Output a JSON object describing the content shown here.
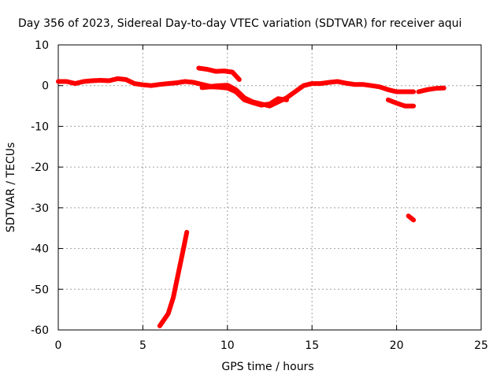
{
  "chart_data": {
    "type": "line",
    "title": "Day 356 of 2023, Sidereal Day-to-day VTEC variation (SDTVAR) for receiver aqui",
    "xlabel": "GPS time / hours",
    "ylabel": "SDTVAR / TECUs",
    "xlim": [
      0,
      25
    ],
    "ylim": [
      -60,
      10
    ],
    "xticks": [
      0,
      5,
      10,
      15,
      20,
      25
    ],
    "yticks": [
      10,
      0,
      -10,
      -20,
      -30,
      -40,
      -50,
      -60
    ],
    "grid": true,
    "series": [
      {
        "name": "main-track-a",
        "points": [
          [
            0,
            1
          ],
          [
            0.5,
            1
          ],
          [
            1,
            0.5
          ],
          [
            1.5,
            1
          ],
          [
            2,
            1.2
          ],
          [
            2.5,
            1.3
          ],
          [
            3,
            1.2
          ],
          [
            3.5,
            1.7
          ],
          [
            4,
            1.5
          ],
          [
            4.5,
            0.5
          ],
          [
            5,
            0.2
          ],
          [
            5.5,
            0
          ],
          [
            6,
            0.3
          ],
          [
            6.5,
            0.5
          ],
          [
            7,
            0.7
          ],
          [
            7.5,
            1
          ],
          [
            8,
            0.8
          ],
          [
            8.5,
            0.3
          ],
          [
            9,
            -0.2
          ],
          [
            9.5,
            0
          ],
          [
            10,
            0.1
          ],
          [
            10.5,
            -1
          ],
          [
            11,
            -3
          ],
          [
            11.5,
            -4
          ],
          [
            12,
            -4.5
          ],
          [
            12.5,
            -5
          ],
          [
            13,
            -4
          ],
          [
            13.5,
            -3
          ],
          [
            14,
            -1.5
          ],
          [
            14.5,
            0
          ],
          [
            15,
            0.5
          ],
          [
            15.5,
            0.5
          ],
          [
            16,
            0.8
          ],
          [
            16.5,
            1
          ],
          [
            17,
            0.6
          ],
          [
            17.5,
            0.3
          ],
          [
            18,
            0.3
          ],
          [
            18.5,
            0
          ],
          [
            19,
            -0.3
          ],
          [
            19.5,
            -1
          ],
          [
            20,
            -1.5
          ],
          [
            20.5,
            -1.5
          ],
          [
            21,
            -1.5
          ]
        ]
      },
      {
        "name": "main-track-b",
        "points": [
          [
            8.3,
            4.3
          ],
          [
            8.8,
            4
          ],
          [
            9.3,
            3.5
          ],
          [
            9.8,
            3.6
          ],
          [
            10.3,
            3.3
          ],
          [
            10.7,
            1.5
          ]
        ]
      },
      {
        "name": "main-track-c",
        "points": [
          [
            8.5,
            -0.5
          ],
          [
            9,
            -0.3
          ],
          [
            9.5,
            -0.4
          ],
          [
            10,
            -0.6
          ],
          [
            10.5,
            -1.5
          ],
          [
            11,
            -3.5
          ],
          [
            11.5,
            -4.2
          ],
          [
            12,
            -4.8
          ],
          [
            12.5,
            -4.5
          ],
          [
            13,
            -3.2
          ],
          [
            13.5,
            -3.5
          ]
        ]
      },
      {
        "name": "late-track-a",
        "points": [
          [
            19.5,
            -3.5
          ],
          [
            20,
            -4.3
          ],
          [
            20.5,
            -5
          ],
          [
            21,
            -5
          ]
        ]
      },
      {
        "name": "late-track-b",
        "points": [
          [
            21.3,
            -1.5
          ],
          [
            21.8,
            -1
          ],
          [
            22.3,
            -0.7
          ],
          [
            22.8,
            -0.6
          ]
        ]
      },
      {
        "name": "steep-rise",
        "points": [
          [
            6.0,
            -59
          ],
          [
            6.5,
            -56
          ],
          [
            6.8,
            -52
          ],
          [
            7.0,
            -48
          ],
          [
            7.2,
            -44
          ],
          [
            7.4,
            -40
          ],
          [
            7.6,
            -36
          ]
        ]
      },
      {
        "name": "isolated-segment",
        "points": [
          [
            20.7,
            -32
          ],
          [
            21.0,
            -33
          ]
        ]
      }
    ]
  }
}
